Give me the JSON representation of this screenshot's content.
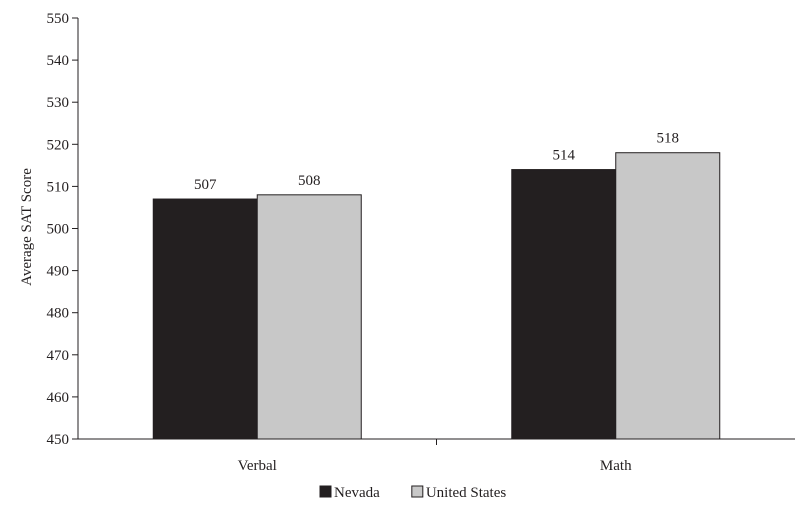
{
  "chart_data": {
    "type": "bar",
    "categories": [
      "Verbal",
      "Math"
    ],
    "series": [
      {
        "name": "Nevada",
        "values": [
          507,
          514
        ],
        "color": "#231f20"
      },
      {
        "name": "United States",
        "values": [
          508,
          518
        ],
        "color": "#c8c8c8"
      }
    ],
    "ylabel": "Average SAT Score",
    "xlabel": "",
    "ylim": [
      450,
      550
    ],
    "yticks": [
      450,
      460,
      470,
      480,
      490,
      500,
      510,
      520,
      530,
      540,
      550
    ],
    "data_labels": true,
    "grid": false,
    "legend": "bottom-center"
  }
}
